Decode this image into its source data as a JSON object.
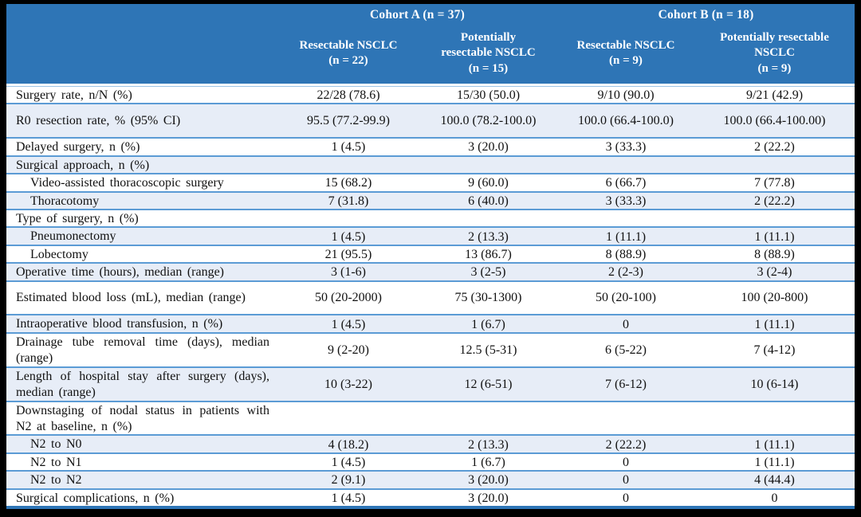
{
  "table": {
    "cohorts": [
      {
        "label": "Cohort A (n = 37)"
      },
      {
        "label": "Cohort B (n = 18)"
      }
    ],
    "columns": [
      {
        "line1": "Resectable NSCLC",
        "line2": "",
        "n": "(n = 22)"
      },
      {
        "line1": "Potentially",
        "line2": "resectable NSCLC",
        "n": "(n = 15)"
      },
      {
        "line1": "Resectable NSCLC",
        "line2": "",
        "n": "(n = 9)"
      },
      {
        "line1": "Potentially resectable",
        "line2": "NSCLC",
        "n": "(n = 9)"
      }
    ],
    "rows": [
      {
        "label": "Surgery rate, n/N (%)",
        "indent": false,
        "tall": false,
        "values": [
          "22/28 (78.6)",
          "15/30 (50.0)",
          "9/10 (90.0)",
          "9/21 (42.9)"
        ]
      },
      {
        "label": "R0 resection rate, % (95% CI)",
        "indent": false,
        "tall": true,
        "values": [
          "95.5 (77.2-99.9)",
          "100.0 (78.2-100.0)",
          "100.0 (66.4-100.0)",
          "100.0 (66.4-100.00)"
        ]
      },
      {
        "label": "Delayed surgery, n (%)",
        "indent": false,
        "tall": false,
        "values": [
          "1 (4.5)",
          "3 (20.0)",
          "3 (33.3)",
          "2 (22.2)"
        ]
      },
      {
        "label": "Surgical approach, n (%)",
        "indent": false,
        "tall": false,
        "values": [
          "",
          "",
          "",
          ""
        ]
      },
      {
        "label": "Video-assisted thoracoscopic surgery",
        "indent": true,
        "tall": false,
        "values": [
          "15 (68.2)",
          "9 (60.0)",
          "6 (66.7)",
          "7 (77.8)"
        ]
      },
      {
        "label": "Thoracotomy",
        "indent": true,
        "tall": false,
        "values": [
          "7 (31.8)",
          "6 (40.0)",
          "3 (33.3)",
          "2 (22.2)"
        ]
      },
      {
        "label": "Type of surgery, n (%)",
        "indent": false,
        "tall": false,
        "values": [
          "",
          "",
          "",
          ""
        ]
      },
      {
        "label": "Pneumonectomy",
        "indent": true,
        "tall": false,
        "values": [
          "1 (4.5)",
          "2 (13.3)",
          "1 (11.1)",
          "1 (11.1)"
        ]
      },
      {
        "label": "Lobectomy",
        "indent": true,
        "tall": false,
        "values": [
          "21 (95.5)",
          "13 (86.7)",
          "8 (88.9)",
          "8 (88.9)"
        ]
      },
      {
        "label": "Operative time (hours), median (range)",
        "indent": false,
        "tall": false,
        "values": [
          "3 (1-6)",
          "3 (2-5)",
          "2 (2-3)",
          "3 (2-4)"
        ]
      },
      {
        "label": "Estimated blood loss (mL), median (range)",
        "indent": false,
        "tall": true,
        "values": [
          "50 (20-2000)",
          "75 (30-1300)",
          "50 (20-100)",
          "100 (20-800)"
        ]
      },
      {
        "label": "Intraoperative blood transfusion, n (%)",
        "indent": false,
        "tall": false,
        "values": [
          "1 (4.5)",
          "1 (6.7)",
          "0",
          "1 (11.1)"
        ]
      },
      {
        "label": "Drainage tube removal time (days), median (range)",
        "indent": false,
        "tall": true,
        "values": [
          "9 (2-20)",
          "12.5 (5-31)",
          "6 (5-22)",
          "7 (4-12)"
        ]
      },
      {
        "label": "Length of hospital stay after surgery (days), median (range)",
        "indent": false,
        "tall": true,
        "values": [
          "10 (3-22)",
          "12 (6-51)",
          "7 (6-12)",
          "10 (6-14)"
        ]
      },
      {
        "label": "Downstaging of nodal status in patients with N2 at baseline, n (%)",
        "indent": false,
        "tall": true,
        "values": [
          "",
          "",
          "",
          ""
        ]
      },
      {
        "label": "N2 to N0",
        "indent": true,
        "tall": false,
        "values": [
          "4 (18.2)",
          "2 (13.3)",
          "2 (22.2)",
          "1 (11.1)"
        ]
      },
      {
        "label": "N2 to N1",
        "indent": true,
        "tall": false,
        "values": [
          "1 (4.5)",
          "1 (6.7)",
          "0",
          "1 (11.1)"
        ]
      },
      {
        "label": "N2 to N2",
        "indent": true,
        "tall": false,
        "values": [
          "2 (9.1)",
          "3 (20.0)",
          "0",
          "4 (44.4)"
        ]
      },
      {
        "label": "Surgical complications, n (%)",
        "indent": false,
        "tall": false,
        "values": [
          "1 (4.5)",
          "3 (20.0)",
          "0",
          "0"
        ]
      }
    ],
    "colors": {
      "header_bg": "#2e75b6",
      "row_alt_bg": "#e7edf7",
      "row_border": "#5b9bd5",
      "bottom_rule": "#2e75b6",
      "frame_bg": "#000000"
    }
  }
}
